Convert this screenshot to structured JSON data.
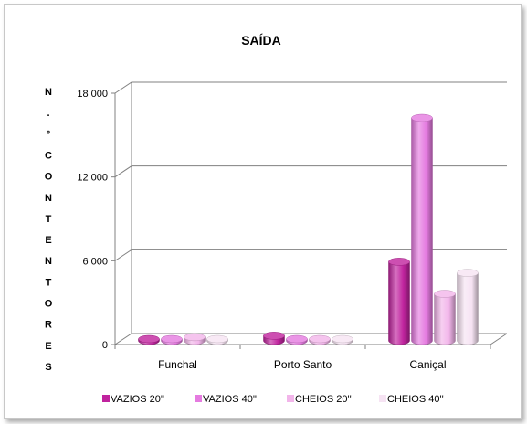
{
  "chart_data": {
    "type": "bar",
    "title": "SAÍDA",
    "ylabel": "N.º CONTENTORES",
    "xlabel": "",
    "categories": [
      "Funchal",
      "Porto Santo",
      "Caniçal"
    ],
    "ylim": [
      0,
      18000
    ],
    "yticks": [
      0,
      6000,
      12000,
      18000
    ],
    "ytick_labels": [
      "0",
      "6 000",
      "12 000",
      "18 000"
    ],
    "grid": true,
    "legend": "bottom",
    "series": [
      {
        "name": "VAZIOS 20''",
        "values": [
          150,
          500,
          5800
        ],
        "color": "#c0239e"
      },
      {
        "name": "VAZIOS  40''",
        "values": [
          150,
          200,
          16100
        ],
        "color": "#e57be0"
      },
      {
        "name": "CHEIOS 20''",
        "values": [
          400,
          150,
          3500
        ],
        "color": "#f2b5ea"
      },
      {
        "name": "CHEIOS 40''",
        "values": [
          150,
          150,
          5000
        ],
        "color": "#f6e3f3"
      }
    ]
  }
}
